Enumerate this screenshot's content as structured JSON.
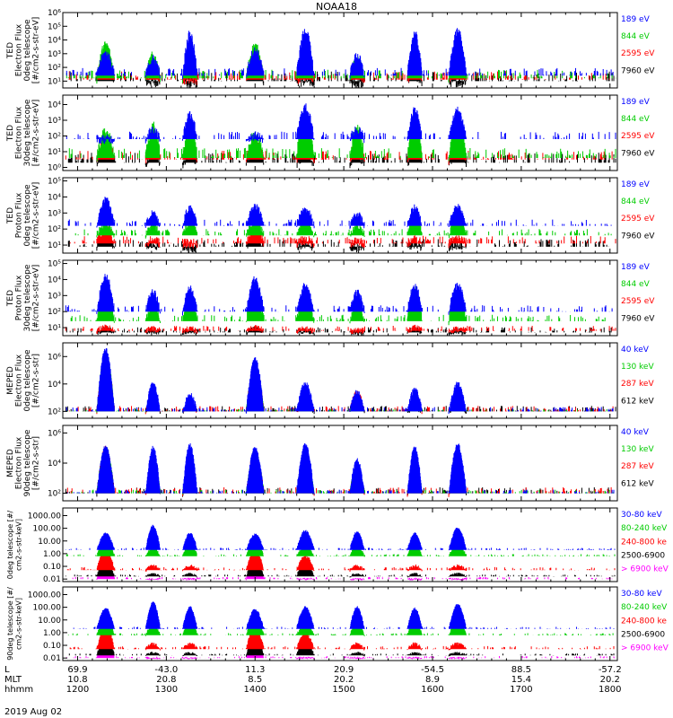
{
  "chart_data": {
    "type": "line",
    "title": "NOAA18",
    "date_label": "2019 Aug 02",
    "x_axis": {
      "row_labels": [
        "L",
        "MLT",
        "hhmm"
      ],
      "l_values": [
        "69.9",
        "-43.0",
        "11.3",
        "20.9",
        "-54.5",
        "88.5",
        "-57.2"
      ],
      "mlt_values": [
        "10.8",
        "20.8",
        "8.5",
        "20.2",
        "8.9",
        "15.4",
        "20.2"
      ],
      "times": [
        "1200",
        "1300",
        "1400",
        "1500",
        "1600",
        "1700",
        "1800"
      ]
    },
    "panels": [
      {
        "name": "ted-electron-0deg",
        "ylabel": [
          "TED",
          "Electron Flux",
          "0deg telescope",
          "[#/cm2-s-str-eV]"
        ],
        "yscale": "log",
        "y_ticks": [
          "10¹",
          "10²",
          "10³",
          "10⁴",
          "10⁵",
          "10⁶"
        ],
        "y_exp_range": [
          0.5,
          6
        ],
        "series": [
          {
            "name": "7960 eV",
            "color": "#000000",
            "base": 1.0,
            "pass_level": [
              2.8,
              1.0,
              0.8,
              2.8,
              1.0,
              0.8,
              1.4,
              1.0
            ],
            "noise": 0.9
          },
          {
            "name": "2595 eV",
            "color": "#ff0000",
            "base": 1.1,
            "pass_level": [
              3.0,
              1.6,
              1.2,
              3.0,
              1.4,
              1.6,
              1.8,
              1.8
            ],
            "noise": 0.8
          },
          {
            "name": "844 eV",
            "color": "#00cc00",
            "base": 1.2,
            "pass_level": [
              3.6,
              2.8,
              3.2,
              3.5,
              3.6,
              2.4,
              3.6,
              3.4
            ],
            "noise": 0.8
          },
          {
            "name": "189 eV",
            "color": "#0000ff",
            "base": 1.4,
            "pass_level": [
              3.0,
              2.6,
              4.4,
              3.2,
              4.6,
              2.8,
              4.4,
              4.6
            ],
            "noise": 0.7
          }
        ]
      },
      {
        "name": "ted-electron-30deg",
        "ylabel": [
          "TED",
          "Electron Flux",
          "30deg telescope",
          "[#/cm2-s-str-eV]"
        ],
        "yscale": "log",
        "y_ticks": [
          "10⁰",
          "10¹",
          "10²",
          "10³",
          "10⁴"
        ],
        "y_exp_range": [
          -0.2,
          4.6
        ],
        "series": [
          {
            "name": "7960 eV",
            "color": "#000000",
            "base": 0.3,
            "pass_level": [
              1.2,
              0.8,
              0.8,
              1.2,
              0.8,
              0.8,
              1.0,
              0.9
            ],
            "noise": 0.8
          },
          {
            "name": "2595 eV",
            "color": "#ff0000",
            "base": 0.5,
            "pass_level": [
              1.6,
              1.4,
              1.2,
              1.5,
              1.6,
              1.4,
              1.8,
              1.6
            ],
            "noise": 0.7
          },
          {
            "name": "844 eV",
            "color": "#00cc00",
            "base": 0.6,
            "pass_level": [
              2.2,
              2.6,
              2.8,
              2.0,
              3.2,
              2.4,
              3.0,
              3.0
            ],
            "noise": 0.8
          },
          {
            "name": "189 eV",
            "color": "#0000ff",
            "base": 1.8,
            "pass_level": [
              1.8,
              2.4,
              3.4,
              2.0,
              3.8,
              2.4,
              3.6,
              3.6
            ],
            "noise": 0.6
          }
        ]
      },
      {
        "name": "ted-proton-0deg",
        "ylabel": [
          "TED",
          "Proton Flux",
          "0deg telescope",
          "[#/cm2-s-str-eV]"
        ],
        "yscale": "log",
        "y_ticks": [
          "10¹",
          "10²",
          "10³",
          "10⁴",
          "10⁵"
        ],
        "y_exp_range": [
          0.5,
          5.2
        ],
        "series": [
          {
            "name": "7960 eV",
            "color": "#000000",
            "base": 0.9,
            "pass_level": [
              1.4,
              1.0,
              0.8,
              1.4,
              1.0,
              0.8,
              1.0,
              1.0
            ],
            "noise": 0.6
          },
          {
            "name": "2595 eV",
            "color": "#ff0000",
            "base": 1.1,
            "pass_level": [
              2.0,
              1.3,
              1.1,
              2.0,
              1.3,
              1.2,
              1.4,
              1.4
            ],
            "noise": 0.6
          },
          {
            "name": "844 eV",
            "color": "#00cc00",
            "base": 1.6,
            "pass_level": [
              2.3,
              2.2,
              2.4,
              2.4,
              2.4,
              2.2,
              2.8,
              2.6
            ],
            "noise": 0.5
          },
          {
            "name": "189 eV",
            "color": "#0000ff",
            "base": 2.2,
            "pass_level": [
              3.8,
              3.0,
              3.3,
              3.4,
              3.2,
              2.9,
              3.3,
              3.4
            ],
            "noise": 0.5
          }
        ]
      },
      {
        "name": "ted-proton-30deg",
        "ylabel": [
          "TED",
          "Proton Flux",
          "30deg telescope",
          "[#/cm2-s-str-eV]"
        ],
        "yscale": "log",
        "y_ticks": [
          "10¹",
          "10²",
          "10³",
          "10⁴",
          "10⁵"
        ],
        "y_exp_range": [
          0.5,
          5.2
        ],
        "series": [
          {
            "name": "7960 eV",
            "color": "#000000",
            "base": 0.7,
            "pass_level": [
              0.9,
              0.8,
              0.8,
              0.9,
              0.8,
              0.7,
              0.9,
              0.8
            ],
            "noise": 0.4
          },
          {
            "name": "2595 eV",
            "color": "#ff0000",
            "base": 0.8,
            "pass_level": [
              1.0,
              0.9,
              0.9,
              1.0,
              0.9,
              0.8,
              1.0,
              0.9
            ],
            "noise": 0.4
          },
          {
            "name": "844 eV",
            "color": "#00cc00",
            "base": 1.4,
            "pass_level": [
              3.4,
              2.4,
              2.6,
              3.4,
              3.0,
              2.4,
              3.4,
              3.2
            ],
            "noise": 0.5
          },
          {
            "name": "189 eV",
            "color": "#0000ff",
            "base": 2.0,
            "pass_level": [
              4.2,
              3.2,
              3.4,
              4.0,
              3.6,
              3.2,
              3.6,
              3.6
            ],
            "noise": 0.5
          }
        ]
      },
      {
        "name": "meped-electron-0deg",
        "ylabel": [
          "MEPED",
          "Electron Flux",
          "0deg telescope",
          "[#/cm2-s-str]"
        ],
        "yscale": "log",
        "y_ticks": [
          "10²",
          "10⁴",
          "10⁶"
        ],
        "y_exp_range": [
          1.5,
          7.0
        ],
        "series": [
          {
            "name": "612 keV",
            "color": "#000000",
            "base": 2.0,
            "pass_level": [
              5.8,
              2.6,
              2.3,
              5.0,
              2.6,
              3.0,
              2.3,
              2.4
            ],
            "noise": 0.5
          },
          {
            "name": "287 keV",
            "color": "#ff0000",
            "base": 2.0,
            "pass_level": [
              6.1,
              2.8,
              2.5,
              5.3,
              2.8,
              3.3,
              2.5,
              2.6
            ],
            "noise": 0.5
          },
          {
            "name": "130 keV",
            "color": "#00cc00",
            "base": 2.0,
            "pass_level": [
              6.3,
              2.6,
              2.4,
              5.5,
              2.7,
              3.0,
              2.5,
              2.5
            ],
            "noise": 0.2
          },
          {
            "name": "40 keV",
            "color": "#0000ff",
            "base": 2.0,
            "pass_level": [
              6.5,
              4.0,
              3.2,
              5.8,
              4.0,
              3.4,
              3.6,
              4.0
            ],
            "noise": 0.4
          }
        ]
      },
      {
        "name": "meped-electron-90deg",
        "ylabel": [
          "MEPED",
          "Electron Flux",
          "90deg telescope",
          "[#/cm2-s-str]"
        ],
        "yscale": "log",
        "y_ticks": [
          "10²",
          "10⁴",
          "10⁶"
        ],
        "y_exp_range": [
          1.5,
          6.5
        ],
        "series": [
          {
            "name": "612 keV",
            "color": "#000000",
            "base": 2.0,
            "pass_level": [
              4.6,
              2.8,
              2.8,
              4.2,
              2.8,
              3.2,
              2.8,
              2.8
            ],
            "noise": 0.5
          },
          {
            "name": "287 keV",
            "color": "#ff0000",
            "base": 2.0,
            "pass_level": [
              4.9,
              3.2,
              3.3,
              4.6,
              3.3,
              3.6,
              3.4,
              3.4
            ],
            "noise": 0.5
          },
          {
            "name": "130 keV",
            "color": "#00cc00",
            "base": 2.0,
            "pass_level": [
              5.0,
              4.3,
              4.2,
              4.8,
              4.4,
              3.8,
              4.3,
              4.3
            ],
            "noise": 0.3
          },
          {
            "name": "40 keV",
            "color": "#0000ff",
            "base": 2.0,
            "pass_level": [
              5.1,
              5.0,
              5.2,
              5.0,
              5.2,
              4.2,
              5.0,
              5.2
            ],
            "noise": 0.3
          }
        ]
      },
      {
        "name": "meped-proton-0deg",
        "ylabel": [
          "0deg telescope [#/",
          "cm2-s-str-keV]"
        ],
        "yscale": "log",
        "y_ticks": [
          "0.01",
          "0.10",
          "1.00",
          "10.00",
          "100.00",
          "1000.00"
        ],
        "y_exp_range": [
          -2.2,
          3.6
        ],
        "series": [
          {
            "name": "> 6900 keV",
            "color": "#ff00ff",
            "base": -2.0,
            "pass_level": [
              -0.6,
              -2.0,
              -2.0,
              -0.6,
              -2.0,
              -2.0,
              -2.0,
              -2.0
            ],
            "noise": 0.2
          },
          {
            "name": "2500-6900",
            "color": "#000000",
            "base": -1.8,
            "pass_level": [
              -0.4,
              -1.6,
              -1.6,
              -0.5,
              -0.7,
              -1.6,
              -1.6,
              -1.6
            ],
            "noise": 0.2
          },
          {
            "name": "240-800 ke",
            "color": "#ff0000",
            "base": -1.3,
            "pass_level": [
              0.4,
              -1.0,
              -1.0,
              0.3,
              -0.2,
              -1.0,
              -1.0,
              -1.0
            ],
            "noise": 0.3
          },
          {
            "name": "80-240 keV",
            "color": "#00cc00",
            "base": -0.2,
            "pass_level": [
              1.2,
              0.4,
              0.8,
              1.1,
              0.5,
              0.6,
              0.8,
              0.7
            ],
            "noise": 0.2
          },
          {
            "name": "30-80 keV",
            "color": "#0000ff",
            "base": 0.3,
            "pass_level": [
              1.6,
              2.2,
              1.6,
              1.5,
              1.8,
              1.7,
              1.6,
              2.0
            ],
            "noise": 0.2
          }
        ]
      },
      {
        "name": "meped-proton-90deg",
        "ylabel": [
          "90deg telescope [#/",
          "cm2-s-str-keV]"
        ],
        "yscale": "log",
        "y_ticks": [
          "0.01",
          "0.10",
          "1.00",
          "10.00",
          "100.00",
          "1000.00"
        ],
        "y_exp_range": [
          -2.2,
          3.6
        ],
        "series": [
          {
            "name": "> 6900 keV",
            "color": "#ff00ff",
            "base": -2.0,
            "pass_level": [
              -0.5,
              -2.0,
              -2.0,
              -0.5,
              -2.0,
              -2.0,
              -2.0,
              -2.0
            ],
            "noise": 0.2
          },
          {
            "name": "2500-6900",
            "color": "#000000",
            "base": -1.8,
            "pass_level": [
              -0.3,
              -1.6,
              -1.6,
              -0.4,
              -0.6,
              -1.6,
              -1.6,
              -1.6
            ],
            "noise": 0.2
          },
          {
            "name": "240-800 ke",
            "color": "#ff0000",
            "base": -1.3,
            "pass_level": [
              0.5,
              -0.9,
              -0.9,
              0.4,
              -0.1,
              -0.9,
              -0.9,
              -0.9
            ],
            "noise": 0.3
          },
          {
            "name": "80-240 keV",
            "color": "#00cc00",
            "base": -0.2,
            "pass_level": [
              1.3,
              0.6,
              1.0,
              1.2,
              0.6,
              0.8,
              1.0,
              0.9
            ],
            "noise": 0.2
          },
          {
            "name": "30-80 keV",
            "color": "#0000ff",
            "base": 0.3,
            "pass_level": [
              1.9,
              2.4,
              2.0,
              1.8,
              2.0,
              2.0,
              1.9,
              2.2
            ],
            "noise": 0.2
          }
        ]
      }
    ],
    "passes_hhmm": [
      "1219",
      "1251",
      "1316",
      "1400",
      "1434",
      "1509",
      "1548",
      "1617"
    ],
    "pass_halfwidth_min": [
      6,
      5,
      5,
      6,
      6,
      5,
      5,
      6
    ]
  }
}
